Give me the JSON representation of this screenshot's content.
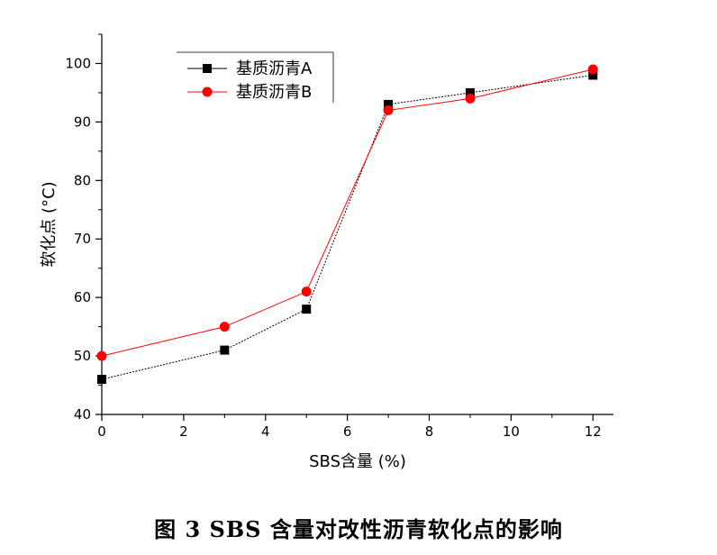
{
  "caption": "图 3  SBS 含量对改性沥青软化点的影响",
  "chart_data": {
    "type": "line",
    "title": "",
    "xlabel": "SBS含量 (%)",
    "ylabel": "软化点 (°C)",
    "xlim": [
      0,
      12.5
    ],
    "ylim": [
      40,
      105
    ],
    "xticks": [
      0,
      2,
      4,
      6,
      8,
      10,
      12
    ],
    "yticks": [
      40,
      50,
      60,
      70,
      80,
      90,
      100
    ],
    "grid": false,
    "legend_position": "top-left",
    "series": [
      {
        "name": "基质沥青A",
        "color": "#000000",
        "marker": "square",
        "x": [
          0,
          3,
          5,
          7,
          9,
          12
        ],
        "y": [
          46,
          51,
          58,
          93,
          95,
          98
        ]
      },
      {
        "name": "基质沥青B",
        "color": "#ff0000",
        "marker": "circle",
        "x": [
          0,
          3,
          5,
          7,
          9,
          12
        ],
        "y": [
          50,
          55,
          61,
          92,
          94,
          99
        ]
      }
    ]
  }
}
